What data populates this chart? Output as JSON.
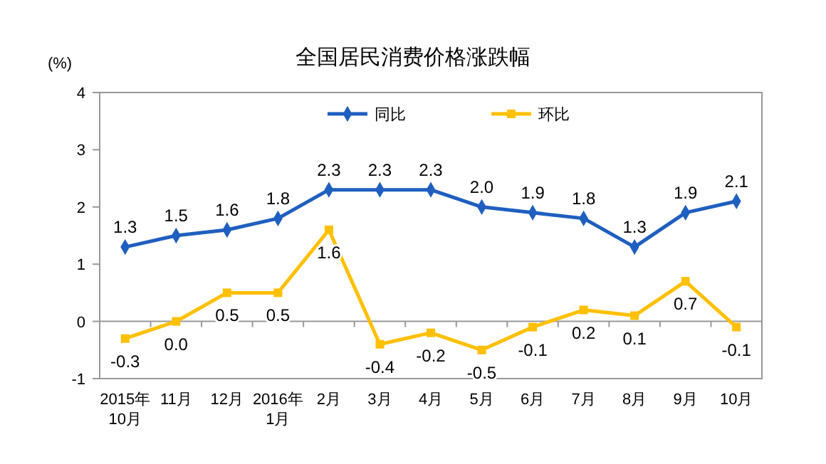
{
  "chart_data": {
    "type": "line",
    "title": "全国居民消费价格涨跌幅",
    "ylabel": "(%)",
    "categories": [
      "2015年\n10月",
      "11月",
      "12月",
      "2016年\n1月",
      "2月",
      "3月",
      "4月",
      "5月",
      "6月",
      "7月",
      "8月",
      "9月",
      "10月"
    ],
    "series": [
      {
        "name": "同比",
        "color": "#1f5fbf",
        "marker": "diamond",
        "values": [
          1.3,
          1.5,
          1.6,
          1.8,
          2.3,
          2.3,
          2.3,
          2.0,
          1.9,
          1.8,
          1.3,
          1.9,
          2.1
        ],
        "value_labels": [
          "1.3",
          "1.5",
          "1.6",
          "1.8",
          "2.3",
          "2.3",
          "2.3",
          "2.0",
          "1.9",
          "1.8",
          "1.3",
          "1.9",
          "2.1"
        ]
      },
      {
        "name": "环比",
        "color": "#ffc000",
        "marker": "square",
        "values": [
          -0.3,
          0.0,
          0.5,
          0.5,
          1.6,
          -0.4,
          -0.2,
          -0.5,
          -0.1,
          0.2,
          0.1,
          0.7,
          -0.1
        ],
        "value_labels": [
          "-0.3",
          "0.0",
          "0.5",
          "0.5",
          "1.6",
          "-0.4",
          "-0.2",
          "-0.5",
          "-0.1",
          "0.2",
          "0.1",
          "0.7",
          "-0.1"
        ]
      }
    ],
    "ylim": [
      -1,
      4
    ],
    "yticks": [
      -1,
      0,
      1,
      2,
      3,
      4
    ],
    "legend": "top",
    "line_style": "solid"
  }
}
